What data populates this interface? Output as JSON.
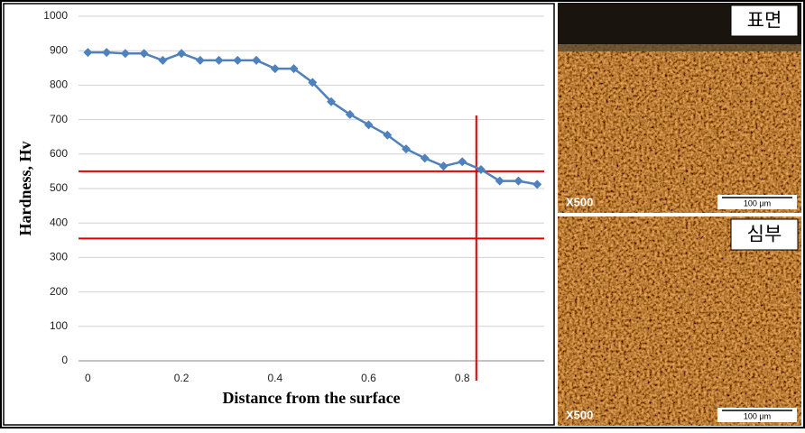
{
  "chart_data": {
    "type": "line",
    "xlabel": "Distance from the surface",
    "ylabel": "Hardness,  Hv",
    "x": [
      0,
      0.04,
      0.08,
      0.12,
      0.16,
      0.2,
      0.24,
      0.28,
      0.32,
      0.36,
      0.4,
      0.44,
      0.48,
      0.52,
      0.56,
      0.6,
      0.64,
      0.68,
      0.72,
      0.76,
      0.8,
      0.84,
      0.88,
      0.92,
      0.96
    ],
    "series": [
      {
        "color": "#4f81bd",
        "values": [
          895,
          895,
          892,
          892,
          872,
          892,
          872,
          872,
          872,
          872,
          848,
          848,
          808,
          752,
          715,
          685,
          655,
          615,
          588,
          565,
          578,
          555,
          522,
          522,
          512
        ]
      }
    ],
    "xlim": [
      -0.02,
      0.975
    ],
    "xticks": [
      0,
      0.2,
      0.4,
      0.6,
      0.8
    ],
    "ylim": [
      0,
      1000
    ],
    "yticks": [
      0,
      100,
      200,
      300,
      400,
      500,
      600,
      700,
      800,
      900,
      1000
    ],
    "grid": true,
    "reference_lines": {
      "color": "#e00000",
      "y": [
        550,
        355
      ],
      "x": [
        0.83
      ]
    }
  },
  "images": [
    {
      "label": "표면",
      "magnification": "X500",
      "scale_bar": "100 μm"
    },
    {
      "label": "심부",
      "magnification": "X500",
      "scale_bar": "100 μm"
    }
  ]
}
